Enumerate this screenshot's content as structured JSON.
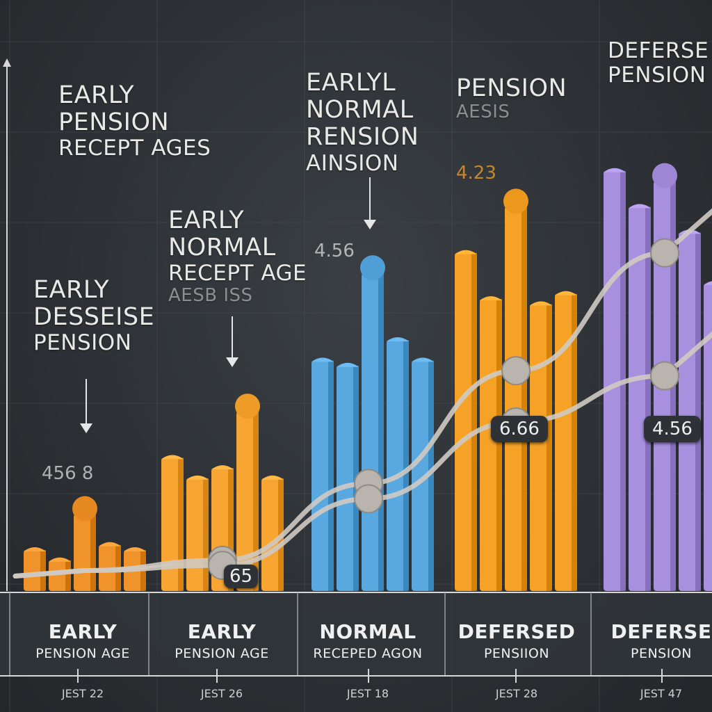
{
  "chart_data": {
    "type": "bar",
    "groups": [
      {
        "name": "early-pension",
        "color": "#f0932b",
        "values": [
          8,
          6,
          15,
          9,
          8
        ],
        "dot_index": 2
      },
      {
        "name": "early-pension-2",
        "color": "#f7a533",
        "values": [
          26,
          22,
          24,
          35,
          22
        ],
        "dot_index": 3
      },
      {
        "name": "normal",
        "color": "#5aa8e0",
        "values": [
          45,
          44,
          62,
          49,
          45
        ],
        "dot_index": 2
      },
      {
        "name": "deferred",
        "color": "#f5a227",
        "values": [
          66,
          57,
          75,
          56,
          58
        ],
        "dot_index": 2
      },
      {
        "name": "deferred-2",
        "color": "#a890de",
        "values": [
          82,
          75,
          80,
          70,
          60
        ],
        "dot_index": 2
      }
    ],
    "trend_lines": [
      {
        "name": "trend-upper",
        "points": [
          [
            0,
            4
          ],
          [
            1,
            6
          ],
          [
            2,
            21
          ],
          [
            3,
            43
          ],
          [
            4,
            66
          ]
        ]
      },
      {
        "name": "trend-lower",
        "points": [
          [
            0,
            4
          ],
          [
            1,
            5
          ],
          [
            2,
            18
          ],
          [
            3,
            33
          ],
          [
            4,
            42
          ]
        ]
      }
    ],
    "ylim": [
      0,
      95
    ],
    "categories": [
      {
        "line1": "EARLY",
        "line2": "PENSION AGE"
      },
      {
        "line1": "EARLY",
        "line2": "PENSION AGE"
      },
      {
        "line1": "NORMAL",
        "line2": "RECEPED AGON"
      },
      {
        "line1": "DEFERSED",
        "line2": "PENSIION"
      },
      {
        "line1": "DEFERSE",
        "line2": "PENSION"
      }
    ],
    "ticks": [
      "JEST 22",
      "JEST 26",
      "JEST 18",
      "JEST 28",
      "JEST 47"
    ],
    "annotations": [
      {
        "lines": [
          "EARLY",
          "PENSION",
          "RECEPT AGES"
        ]
      },
      {
        "lines": [
          "EARLY",
          "DESSEISE",
          "PENSION"
        ]
      },
      {
        "lines": [
          "EARLY",
          "NORMAL",
          "RECEPT AGE",
          "AESB ISS"
        ]
      },
      {
        "lines": [
          "EARLYL",
          "NORMAL",
          "RENSION",
          "AINSION"
        ]
      },
      {
        "lines": [
          "PENSION",
          "AESIS"
        ]
      },
      {
        "lines": [
          "DEFERSE",
          "PENSION"
        ]
      }
    ],
    "value_labels": [
      "456 8",
      "4.56",
      "4.23"
    ],
    "callouts": [
      "65",
      "6.66",
      "4.56"
    ]
  }
}
